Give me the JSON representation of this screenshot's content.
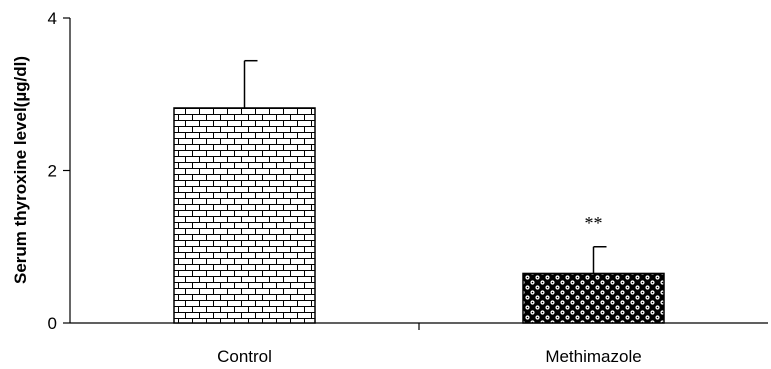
{
  "chart_data": {
    "type": "bar",
    "title": "",
    "xlabel": "",
    "ylabel": "Serum thyroxine level(µg/dl)",
    "categories": [
      "Control",
      "Methimazole"
    ],
    "values": [
      2.82,
      0.65
    ],
    "errors": [
      0.62,
      0.35
    ],
    "patterns": [
      "brick",
      "checker-dots"
    ],
    "annotations": [
      "",
      "**"
    ],
    "ylim": [
      0,
      4
    ],
    "yticks": [
      0,
      2,
      4
    ],
    "grid": false,
    "legend": "none"
  }
}
